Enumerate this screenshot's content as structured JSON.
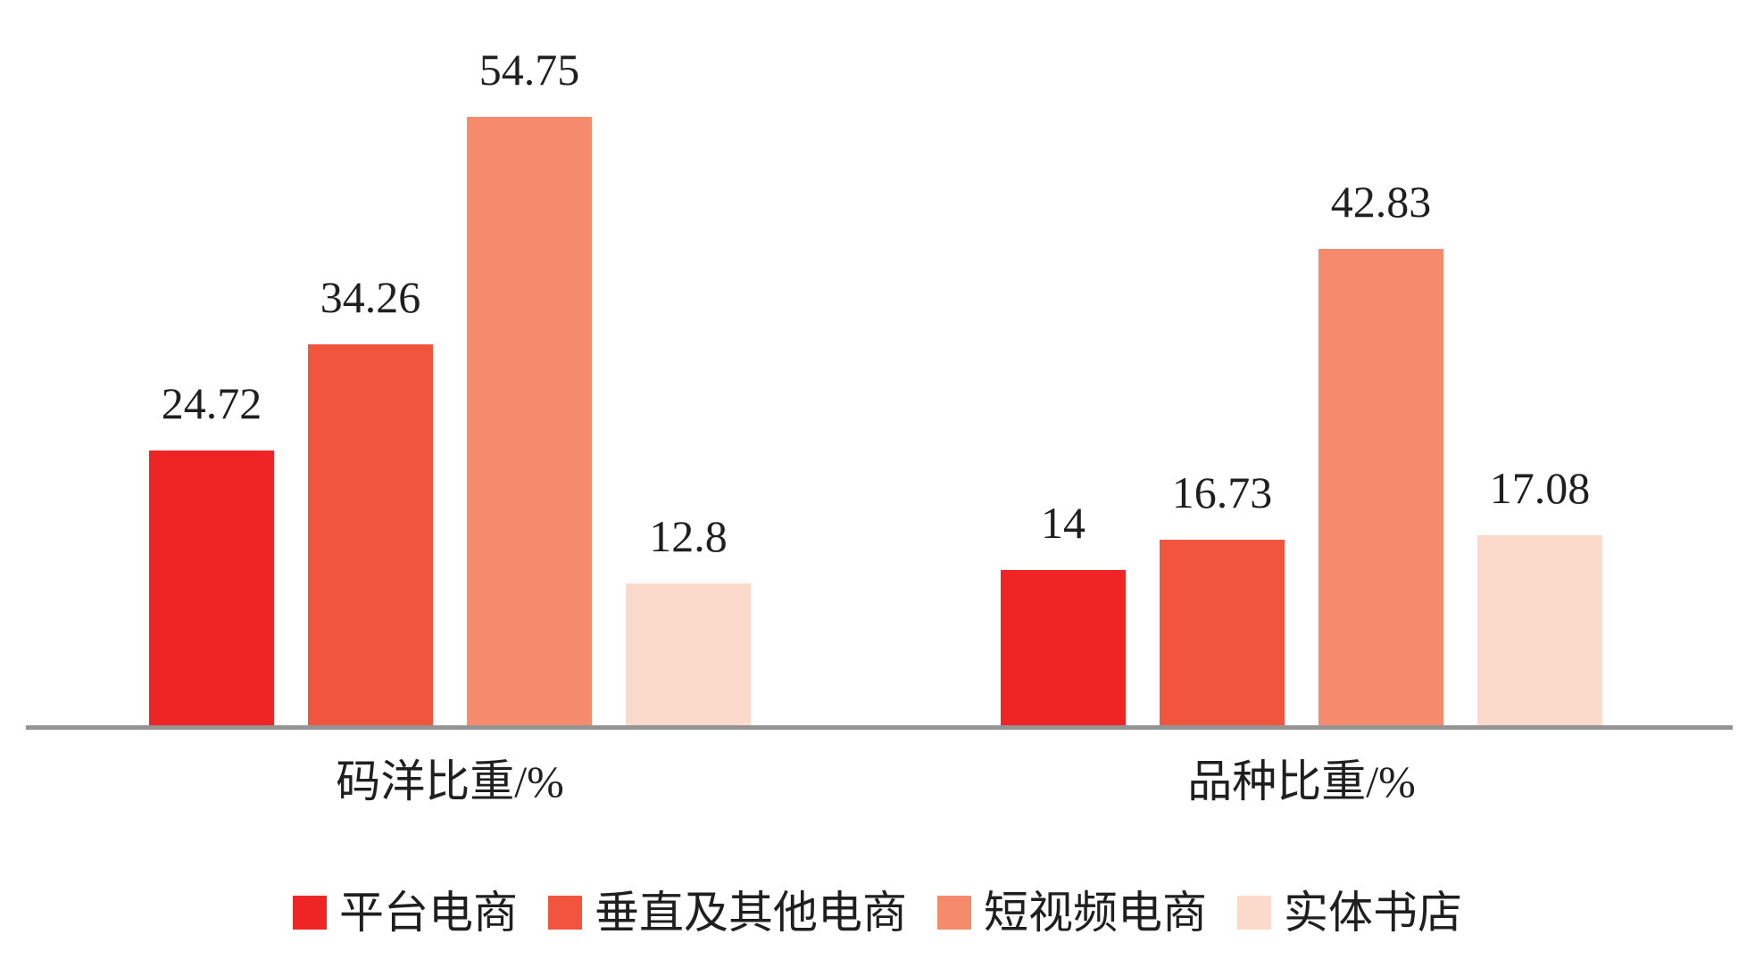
{
  "chart_data": {
    "type": "bar",
    "title": "",
    "categories": [
      "码洋比重/%",
      "品种比重/%"
    ],
    "series": [
      {
        "name": "平台电商",
        "color": "#EE2524",
        "values": [
          24.72,
          14
        ],
        "labels": [
          "24.72",
          "14"
        ]
      },
      {
        "name": "垂直及其他电商",
        "color": "#F2553D",
        "values": [
          34.26,
          16.73
        ],
        "labels": [
          "34.26",
          "16.73"
        ]
      },
      {
        "name": "短视频电商",
        "color": "#F68A6D",
        "values": [
          54.75,
          42.83
        ],
        "labels": [
          "54.75",
          "42.83"
        ]
      },
      {
        "name": "实体书店",
        "color": "#FBDACB",
        "values": [
          12.8,
          17.08
        ],
        "labels": [
          "12.8",
          "17.08"
        ]
      }
    ],
    "xlabel": "",
    "ylabel": "",
    "ylim": [
      0,
      65
    ],
    "grid": false,
    "value_labels_shown": true,
    "legend_position": "bottom",
    "axis_line_color": "#949494",
    "text_color": "#1f1f1f",
    "background_color": "#ffffff"
  }
}
